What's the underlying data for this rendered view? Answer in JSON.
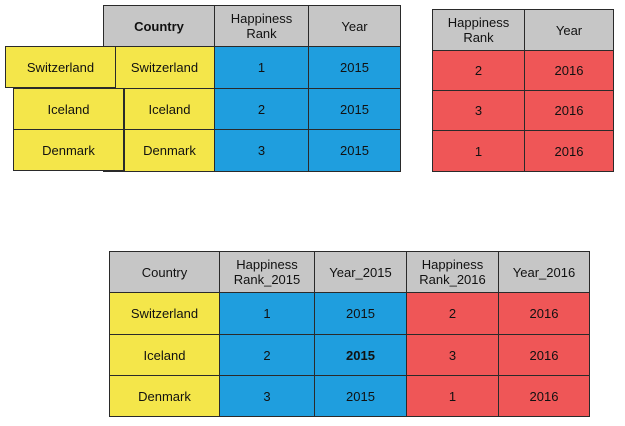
{
  "table_2015": {
    "headers": [
      "Country",
      "Happiness\nRank",
      "Year"
    ],
    "rows": [
      [
        "Switzerland",
        "1",
        "2015"
      ],
      [
        "Iceland",
        "2",
        "2015"
      ],
      [
        "Denmark",
        "3",
        "2015"
      ]
    ]
  },
  "table_2016": {
    "headers": [
      "Happiness\nRank",
      "Year"
    ],
    "rows": [
      [
        "2",
        "2016"
      ],
      [
        "3",
        "2016"
      ],
      [
        "1",
        "2016"
      ]
    ]
  },
  "country_keys": [
    "Switzerland",
    "Iceland",
    "Denmark"
  ],
  "merged_table": {
    "headers": [
      "Country",
      "Happiness\nRank_2015",
      "Year_2015",
      "Happiness\nRank_2016",
      "Year_2016"
    ],
    "rows": [
      [
        "Switzerland",
        "1",
        "2015",
        "2",
        "2016"
      ],
      [
        "Iceland",
        "2",
        "2015",
        "3",
        "2016"
      ],
      [
        "Denmark",
        "3",
        "2015",
        "1",
        "2016"
      ]
    ]
  },
  "colors": {
    "header": "#c6c6c6",
    "country": "#f4e64a",
    "data_2015": "#1f9ede",
    "data_2016": "#ef5657"
  }
}
